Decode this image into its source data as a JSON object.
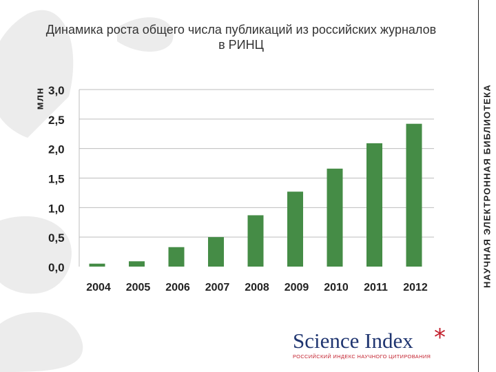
{
  "title": "Динамика роста общего числа публикаций из российских журналов в РИНЦ",
  "side_banner": "НАУЧНАЯ ЭЛЕКТРОННАЯ БИБЛИОТЕКА",
  "logo": {
    "name": "Science Index",
    "star": "*",
    "tagline": "РОССИЙСКИЙ ИНДЕКС НАУЧНОГО ЦИТИРОВАНИЯ"
  },
  "colors": {
    "bar": "#458c46",
    "grid": "#bdbdbd",
    "decoration": "#ececec",
    "logo_text": "#1f3570",
    "logo_accent": "#c21f2c"
  },
  "chart_data": {
    "type": "bar",
    "ylabel": "млн",
    "categories": [
      "2004",
      "2005",
      "2006",
      "2007",
      "2008",
      "2009",
      "2010",
      "2011",
      "2012"
    ],
    "values": [
      0.05,
      0.09,
      0.33,
      0.5,
      0.87,
      1.27,
      1.66,
      2.09,
      2.42
    ],
    "ylim": [
      0,
      3.0
    ],
    "yticks": [
      "0,0",
      "0,5",
      "1,0",
      "1,5",
      "2,0",
      "2,5",
      "3,0"
    ],
    "grid": true,
    "legend": "none"
  }
}
